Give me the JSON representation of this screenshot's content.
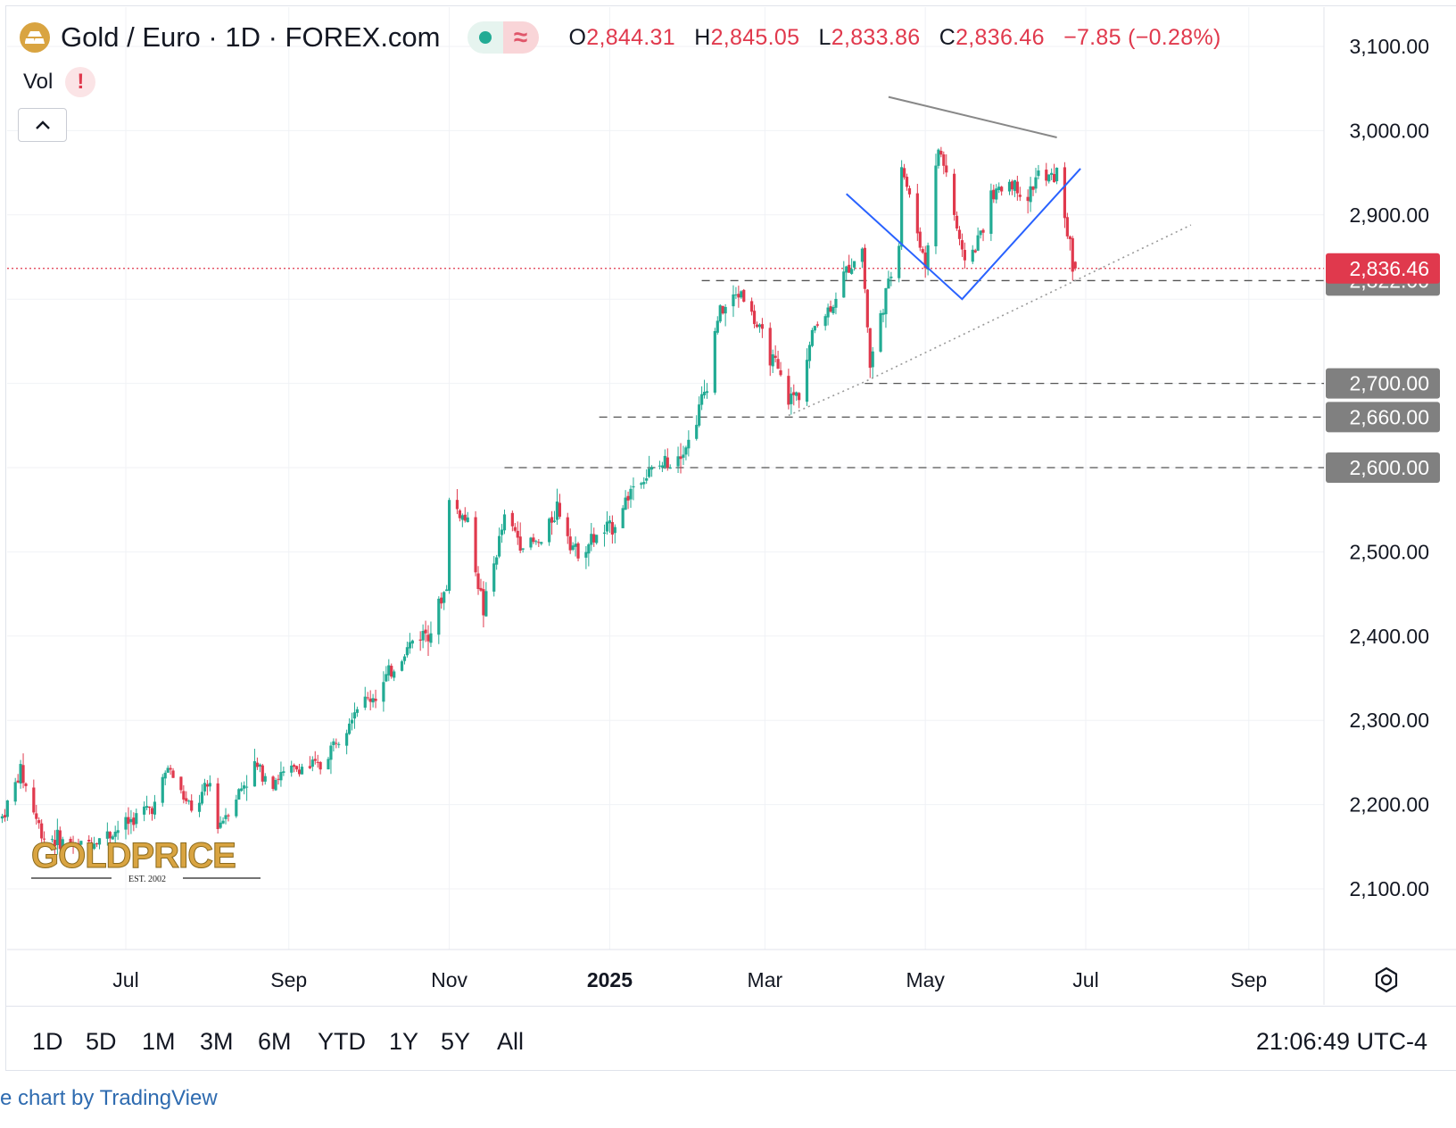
{
  "header": {
    "title": "Gold / Euro · 1D · FOREX.com",
    "ohlc": {
      "o_key": "O",
      "o_val": "2,844.31",
      "h_key": "H",
      "h_val": "2,845.05",
      "l_key": "L",
      "l_val": "2,833.86",
      "c_key": "C",
      "c_val": "2,836.46",
      "change": "−7.85 (−0.28%)"
    },
    "vol_label": "Vol",
    "warn_glyph": "!"
  },
  "watermark": {
    "brand": "GOLDPRICE",
    "est": "EST. 2002"
  },
  "range_buttons": [
    "1D",
    "5D",
    "1M",
    "3M",
    "6M",
    "YTD",
    "1Y",
    "5Y",
    "All"
  ],
  "clock": "21:06:49 UTC-4",
  "attribution": "e chart by TradingView",
  "colors": {
    "up": "#22ab94",
    "down": "#e0394d",
    "badge_grey": "#808080",
    "trend_blue": "#2962ff",
    "accent_gold": "#d9a441"
  },
  "chart_data": {
    "type": "candlestick",
    "symbol": "Gold / Euro",
    "interval": "1D",
    "x_tick_labels": [
      "Jul",
      "Sep",
      "Nov",
      "2025",
      "Mar",
      "May",
      "Jul",
      "Sep"
    ],
    "y_tick_labels": [
      "3,100.00",
      "3,000.00",
      "2,900.00",
      "2,500.00",
      "2,400.00",
      "2,300.00",
      "2,200.00",
      "2,100.00"
    ],
    "ylim": [
      2025,
      3115
    ],
    "xlim": [
      "2024-05-15",
      "2025-10-15"
    ],
    "last_price": 2836.46,
    "last_price_label": "2,836.46",
    "levels": [
      {
        "value": 2822,
        "label": "2,822.00",
        "from": "2025-02-05"
      },
      {
        "value": 2700,
        "label": "2,700.00",
        "from": "2025-04-08"
      },
      {
        "value": 2660,
        "label": "2,660.00",
        "from": "2024-12-28"
      },
      {
        "value": 2600,
        "label": "2,600.00",
        "from": "2024-11-22"
      }
    ],
    "price_path": [
      [
        "2024-05-15",
        2185
      ],
      [
        "2024-05-22",
        2240
      ],
      [
        "2024-05-30",
        2165
      ],
      [
        "2024-06-12",
        2150
      ],
      [
        "2024-06-25",
        2165
      ],
      [
        "2024-07-12",
        2200
      ],
      [
        "2024-07-17",
        2245
      ],
      [
        "2024-07-26",
        2190
      ],
      [
        "2024-08-02",
        2225
      ],
      [
        "2024-08-05",
        2175
      ],
      [
        "2024-08-19",
        2245
      ],
      [
        "2024-08-26",
        2230
      ],
      [
        "2024-09-06",
        2245
      ],
      [
        "2024-09-13",
        2245
      ],
      [
        "2024-09-26",
        2315
      ],
      [
        "2024-10-04",
        2330
      ],
      [
        "2024-10-18",
        2395
      ],
      [
        "2024-10-25",
        2410
      ],
      [
        "2024-10-31",
        2460
      ],
      [
        "2024-11-01",
        2560
      ],
      [
        "2024-11-08",
        2535
      ],
      [
        "2024-11-14",
        2430
      ],
      [
        "2024-11-22",
        2540
      ],
      [
        "2024-11-29",
        2510
      ],
      [
        "2024-12-06",
        2510
      ],
      [
        "2024-12-12",
        2555
      ],
      [
        "2024-12-19",
        2500
      ],
      [
        "2025-01-02",
        2530
      ],
      [
        "2025-01-10",
        2580
      ],
      [
        "2025-01-24",
        2610
      ],
      [
        "2025-01-31",
        2630
      ],
      [
        "2025-02-07",
        2700
      ],
      [
        "2025-02-11",
        2780
      ],
      [
        "2025-02-14",
        2790
      ],
      [
        "2025-02-20",
        2810
      ],
      [
        "2025-02-27",
        2760
      ],
      [
        "2025-03-05",
        2720
      ],
      [
        "2025-03-10",
        2680
      ],
      [
        "2025-03-14",
        2690
      ],
      [
        "2025-03-20",
        2770
      ],
      [
        "2025-03-26",
        2790
      ],
      [
        "2025-04-02",
        2840
      ],
      [
        "2025-04-07",
        2860
      ],
      [
        "2025-04-10",
        2720
      ],
      [
        "2025-04-14",
        2780
      ],
      [
        "2025-04-18",
        2830
      ],
      [
        "2025-04-21",
        2870
      ],
      [
        "2025-04-22",
        2960
      ],
      [
        "2025-04-25",
        2920
      ],
      [
        "2025-05-01",
        2840
      ],
      [
        "2025-05-06",
        2980
      ],
      [
        "2025-05-09",
        2950
      ],
      [
        "2025-05-15",
        2850
      ],
      [
        "2025-05-20",
        2860
      ],
      [
        "2025-05-26",
        2920
      ],
      [
        "2025-06-02",
        2940
      ],
      [
        "2025-06-09",
        2920
      ],
      [
        "2025-06-13",
        2950
      ],
      [
        "2025-06-16",
        2940
      ],
      [
        "2025-06-20",
        2950
      ],
      [
        "2025-06-23",
        2900
      ],
      [
        "2025-06-26",
        2840
      ],
      [
        "2025-06-27",
        2836
      ]
    ],
    "trendlines": [
      {
        "name": "resistance-line",
        "style": "solid-grey",
        "points": [
          [
            "2025-04-17",
            3040
          ],
          [
            "2025-06-20",
            2992
          ]
        ]
      },
      {
        "name": "v-pattern",
        "style": "solid-blue",
        "points": [
          [
            "2025-04-01",
            2925
          ],
          [
            "2025-05-15",
            2800
          ],
          [
            "2025-06-29",
            2955
          ]
        ]
      },
      {
        "name": "rising-support",
        "style": "dotted-grey",
        "points": [
          [
            "2025-03-10",
            2662
          ],
          [
            "2025-04-08",
            2702
          ],
          [
            "2025-08-10",
            2888
          ]
        ]
      }
    ]
  }
}
